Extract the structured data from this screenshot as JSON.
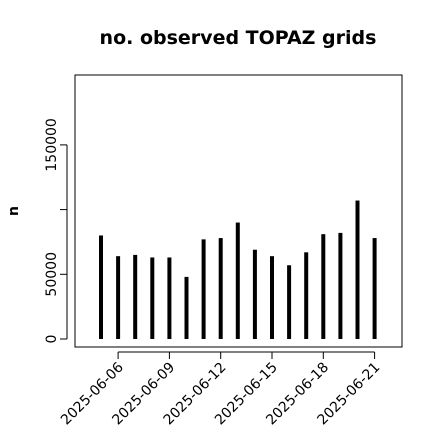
{
  "chart_data": {
    "type": "bar",
    "title": "no. observed TOPAZ grids",
    "xlabel": "",
    "ylabel": "n",
    "ylim": [
      0,
      205000
    ],
    "y_ticks": [
      0,
      50000,
      100000,
      150000
    ],
    "y_tick_labels": [
      "0",
      "50000",
      "",
      "150000"
    ],
    "x_tick_labels": [
      "2025-06-06",
      "2025-06-09",
      "2025-06-12",
      "2025-06-15",
      "2025-06-18",
      "2025-06-21"
    ],
    "x_tick_colors": [
      "#000000",
      "#000000",
      "#228b22",
      "#000000",
      "#000000",
      "#000000"
    ],
    "categories": [
      "2025-06-05",
      "2025-06-06",
      "2025-06-07",
      "2025-06-08",
      "2025-06-09",
      "2025-06-10",
      "2025-06-11",
      "2025-06-12",
      "2025-06-13",
      "2025-06-14",
      "2025-06-15",
      "2025-06-16",
      "2025-06-17",
      "2025-06-18",
      "2025-06-19",
      "2025-06-20",
      "2025-06-21"
    ],
    "values": [
      80000,
      64000,
      65000,
      63000,
      63000,
      48000,
      77000,
      78000,
      90000,
      69000,
      64000,
      57000,
      67000,
      81000,
      82000,
      107000,
      78000
    ],
    "bar_color": "#000000",
    "grid": false,
    "legend": "none"
  }
}
